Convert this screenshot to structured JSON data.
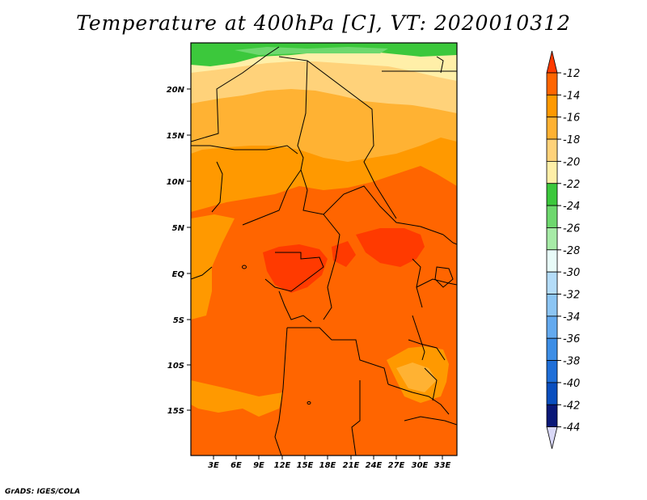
{
  "title": "Temperature at 400hPa [C], VT: 2020010312",
  "credit": "GrADS: IGES/COLA",
  "map": {
    "variable": "Temperature",
    "level": "400hPa",
    "units": "C",
    "valid_time": "2020010312",
    "lat_ticks": [
      "20N",
      "15N",
      "10N",
      "5N",
      "EQ",
      "5S",
      "10S",
      "15S"
    ],
    "lon_ticks": [
      "3E",
      "6E",
      "9E",
      "12E",
      "15E",
      "18E",
      "21E",
      "24E",
      "27E",
      "30E",
      "33E"
    ]
  },
  "colorbar": {
    "labels": [
      "-12",
      "-14",
      "-16",
      "-18",
      "-20",
      "-22",
      "-24",
      "-26",
      "-28",
      "-30",
      "-32",
      "-34",
      "-36",
      "-38",
      "-40",
      "-42",
      "-44"
    ],
    "colors": [
      "#ff3a00",
      "#ff6500",
      "#ff9900",
      "#ffb233",
      "#ffd27a",
      "#ffefa8",
      "#3cc83c",
      "#6ed86e",
      "#a7eba7",
      "#e8fbf8",
      "#b4dcf8",
      "#8cc5f3",
      "#64aaef",
      "#3d8ee6",
      "#1f6fd8",
      "#0a4fbf",
      "#0a1878",
      "#d9d8f7"
    ]
  }
}
